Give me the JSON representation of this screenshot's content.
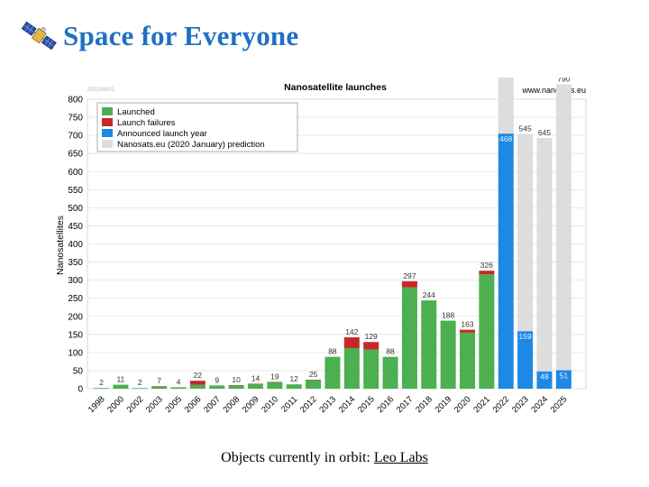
{
  "header": {
    "title": "Space for Everyone",
    "icon": "satellite-icon"
  },
  "chart_data": {
    "type": "bar",
    "title": "Nanosatellite launches",
    "date_stamp": "2021/09/01",
    "source": "www.nanosats.eu",
    "xlabel": "",
    "ylabel": "Nanosatellites",
    "ylim": [
      0,
      800
    ],
    "yticks": [
      0,
      50,
      100,
      150,
      200,
      250,
      300,
      350,
      400,
      450,
      500,
      550,
      600,
      650,
      700,
      750,
      800
    ],
    "grid": true,
    "legend_position": "top-left",
    "categories": [
      "1998",
      "2000",
      "2002",
      "2003",
      "2005",
      "2006",
      "2007",
      "2008",
      "2009",
      "2010",
      "2011",
      "2012",
      "2013",
      "2014",
      "2015",
      "2016",
      "2017",
      "2018",
      "2019",
      "2020",
      "2021",
      "2022",
      "2023",
      "2024",
      "2025"
    ],
    "series": [
      {
        "name": "Launched",
        "color": "#4caf50",
        "values": [
          2,
          11,
          2,
          6,
          4,
          11,
          9,
          9,
          13,
          18,
          12,
          24,
          88,
          112,
          108,
          88,
          280,
          244,
          188,
          155,
          316,
          0,
          0,
          0,
          0
        ]
      },
      {
        "name": "Launch failures",
        "color": "#c62828",
        "values": [
          0,
          0,
          0,
          1,
          0,
          11,
          0,
          1,
          1,
          1,
          0,
          1,
          0,
          30,
          21,
          0,
          17,
          0,
          0,
          8,
          10,
          0,
          0,
          0,
          0
        ]
      },
      {
        "name": "Announced launch year",
        "color": "#1e88e5",
        "values": [
          0,
          0,
          0,
          0,
          0,
          0,
          0,
          0,
          0,
          0,
          0,
          0,
          0,
          0,
          0,
          0,
          0,
          0,
          0,
          0,
          0,
          705,
          159,
          48,
          51
        ]
      },
      {
        "name": "Nanosats.eu (2020 January) prediction",
        "color": "#dddddd",
        "values": [
          0,
          0,
          0,
          0,
          0,
          0,
          0,
          0,
          0,
          0,
          0,
          0,
          0,
          0,
          0,
          0,
          0,
          0,
          0,
          0,
          0,
          468,
          545,
          645,
          790
        ]
      }
    ],
    "bar_labels": [
      "2",
      "11",
      "2",
      "7",
      "4",
      "22",
      "9",
      "10",
      "14",
      "19",
      "12",
      "25",
      "88",
      "142",
      "129",
      "88",
      "297",
      "244",
      "188",
      "163",
      "326",
      "705",
      "545",
      "645",
      "790"
    ],
    "inner_labels": {
      "2022": "468",
      "2023": "159",
      "2024": "48",
      "2025": "51"
    }
  },
  "footer": {
    "text": "Objects currently in orbit:",
    "link_text": "Leo Labs"
  }
}
